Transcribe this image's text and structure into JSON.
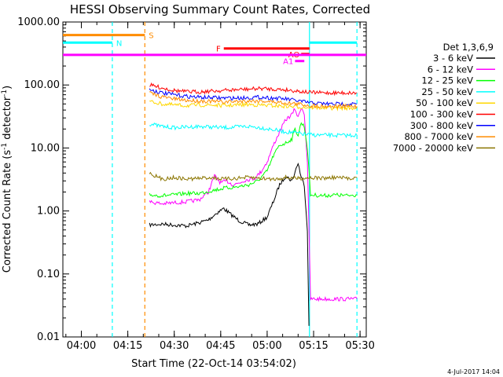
{
  "chart_data": {
    "type": "line",
    "title": "HESSI Observing Summary Count Rates, Corrected",
    "xlabel": "Start Time (22-Oct-14 03:54:02)",
    "ylabel_prefix": "Corrected Count Rate (s",
    "ylabel_sup1": "-1",
    "ylabel_mid": " detector",
    "ylabel_sup2": "-1",
    "ylabel_suffix": ")",
    "y_scale": "log",
    "ylim": [
      0.01,
      1000
    ],
    "xlim": [
      "03:54:02",
      "05:32:00"
    ],
    "x_ticks": [
      "04:00",
      "04:15",
      "04:30",
      "04:45",
      "05:00",
      "05:15",
      "05:30"
    ],
    "y_ticks": [
      "1000.00",
      "100.00",
      "10.00",
      "1.00",
      "0.10",
      "0.01"
    ],
    "y_tick_values": [
      1000,
      100,
      10,
      1,
      0.1,
      0.01
    ],
    "legend_title": "Det 1,3,6,9",
    "legend_position": "right",
    "series": [
      {
        "name": "3 - 6 keV",
        "color": "#000000",
        "points": [
          [
            "04:22",
            0.6
          ],
          [
            "04:26",
            0.62
          ],
          [
            "04:30",
            0.6
          ],
          [
            "04:34",
            0.58
          ],
          [
            "04:38",
            0.65
          ],
          [
            "04:41",
            0.72
          ],
          [
            "04:44",
            0.95
          ],
          [
            "04:46",
            1.1
          ],
          [
            "04:48",
            0.9
          ],
          [
            "04:51",
            0.7
          ],
          [
            "04:54",
            0.6
          ],
          [
            "04:57",
            0.62
          ],
          [
            "05:00",
            0.8
          ],
          [
            "05:02",
            1.4
          ],
          [
            "05:04",
            2.6
          ],
          [
            "05:06",
            3.6
          ],
          [
            "05:08",
            3.0
          ],
          [
            "05:09",
            4.2
          ],
          [
            "05:10",
            5.8
          ],
          [
            "05:11",
            3.4
          ],
          [
            "05:12",
            2.6
          ],
          [
            "05:13",
            0.5
          ],
          [
            "05:13:30",
            0.015
          ]
        ]
      },
      {
        "name": "6 - 12 keV",
        "color": "#ff00ff",
        "points": [
          [
            "04:22",
            1.4
          ],
          [
            "04:26",
            1.3
          ],
          [
            "04:30",
            1.35
          ],
          [
            "04:34",
            1.4
          ],
          [
            "04:38",
            1.5
          ],
          [
            "04:41",
            2.0
          ],
          [
            "04:43",
            3.6
          ],
          [
            "04:45",
            2.8
          ],
          [
            "04:47",
            3.0
          ],
          [
            "04:49",
            2.6
          ],
          [
            "04:51",
            2.8
          ],
          [
            "04:53",
            3.1
          ],
          [
            "04:56",
            3.3
          ],
          [
            "04:58",
            4.2
          ],
          [
            "05:00",
            6.0
          ],
          [
            "05:02",
            11.0
          ],
          [
            "05:04",
            18.0
          ],
          [
            "05:06",
            28.0
          ],
          [
            "05:08",
            34.0
          ],
          [
            "05:09",
            42.0
          ],
          [
            "05:10",
            30.0
          ],
          [
            "05:11",
            45.0
          ],
          [
            "05:12",
            35.0
          ],
          [
            "05:13",
            6.0
          ],
          [
            "05:14",
            0.04
          ],
          [
            "05:16",
            0.04
          ],
          [
            "05:20",
            0.04
          ],
          [
            "05:24",
            0.04
          ],
          [
            "05:28",
            0.04
          ],
          [
            "05:29",
            0.04
          ]
        ]
      },
      {
        "name": "12 - 25 keV",
        "color": "#00ff00",
        "points": [
          [
            "04:22",
            1.8
          ],
          [
            "04:26",
            1.75
          ],
          [
            "04:30",
            1.8
          ],
          [
            "04:34",
            1.9
          ],
          [
            "04:38",
            1.9
          ],
          [
            "04:42",
            2.1
          ],
          [
            "04:46",
            2.3
          ],
          [
            "04:50",
            2.4
          ],
          [
            "04:54",
            2.6
          ],
          [
            "04:57",
            3.0
          ],
          [
            "05:00",
            4.3
          ],
          [
            "05:02",
            7.5
          ],
          [
            "05:04",
            11.0
          ],
          [
            "05:06",
            12.0
          ],
          [
            "05:08",
            14.0
          ],
          [
            "05:09",
            20.0
          ],
          [
            "05:10",
            16.0
          ],
          [
            "05:11",
            25.0
          ],
          [
            "05:12",
            22.0
          ],
          [
            "05:13",
            10.0
          ],
          [
            "05:14",
            1.8
          ],
          [
            "05:18",
            1.75
          ],
          [
            "05:22",
            1.8
          ],
          [
            "05:26",
            1.75
          ],
          [
            "05:29",
            1.8
          ]
        ]
      },
      {
        "name": "25 - 50 keV",
        "color": "#00ffff",
        "points": [
          [
            "04:22",
            24.0
          ],
          [
            "04:26",
            22.0
          ],
          [
            "04:30",
            21.0
          ],
          [
            "04:34",
            21.5
          ],
          [
            "04:38",
            22.0
          ],
          [
            "04:42",
            21.5
          ],
          [
            "04:46",
            21.0
          ],
          [
            "04:50",
            21.5
          ],
          [
            "04:54",
            22.0
          ],
          [
            "04:58",
            21.0
          ],
          [
            "05:02",
            19.5
          ],
          [
            "05:06",
            18.0
          ],
          [
            "05:09",
            17.5
          ],
          [
            "05:12",
            16.5
          ],
          [
            "05:16",
            16.0
          ],
          [
            "05:20",
            16.0
          ],
          [
            "05:24",
            15.8
          ],
          [
            "05:29",
            16.0
          ]
        ]
      },
      {
        "name": "50 - 100 keV",
        "color": "#ffd700",
        "points": [
          [
            "04:22",
            55.0
          ],
          [
            "04:26",
            50.0
          ],
          [
            "04:30",
            48.0
          ],
          [
            "04:34",
            47.0
          ],
          [
            "04:38",
            48.0
          ],
          [
            "04:42",
            48.0
          ],
          [
            "04:46",
            47.0
          ],
          [
            "04:50",
            48.0
          ],
          [
            "04:54",
            49.0
          ],
          [
            "04:58",
            48.0
          ],
          [
            "05:02",
            47.0
          ],
          [
            "05:06",
            46.0
          ],
          [
            "05:10",
            45.0
          ],
          [
            "05:14",
            44.0
          ],
          [
            "05:20",
            43.0
          ],
          [
            "05:29",
            43.0
          ]
        ]
      },
      {
        "name": "100 - 300 keV",
        "color": "#ff0000",
        "points": [
          [
            "04:22",
            100.0
          ],
          [
            "04:26",
            90.0
          ],
          [
            "04:30",
            82.0
          ],
          [
            "04:34",
            78.0
          ],
          [
            "04:38",
            78.0
          ],
          [
            "04:42",
            80.0
          ],
          [
            "04:46",
            82.0
          ],
          [
            "04:50",
            84.0
          ],
          [
            "04:54",
            86.0
          ],
          [
            "04:58",
            88.0
          ],
          [
            "05:02",
            86.0
          ],
          [
            "05:06",
            84.0
          ],
          [
            "05:10",
            80.0
          ],
          [
            "05:14",
            76.0
          ],
          [
            "05:20",
            75.0
          ],
          [
            "05:29",
            75.0
          ]
        ]
      },
      {
        "name": "300 - 800 keV",
        "color": "#0000ff",
        "points": [
          [
            "04:22",
            85.0
          ],
          [
            "04:26",
            75.0
          ],
          [
            "04:30",
            70.0
          ],
          [
            "04:34",
            66.0
          ],
          [
            "04:38",
            64.0
          ],
          [
            "04:42",
            63.0
          ],
          [
            "04:46",
            62.0
          ],
          [
            "04:50",
            62.0
          ],
          [
            "04:54",
            63.0
          ],
          [
            "04:58",
            64.0
          ],
          [
            "05:02",
            62.0
          ],
          [
            "05:06",
            60.0
          ],
          [
            "05:10",
            56.0
          ],
          [
            "05:14",
            52.0
          ],
          [
            "05:20",
            50.0
          ],
          [
            "05:29",
            50.0
          ]
        ]
      },
      {
        "name": "800 - 7000 keV",
        "color": "#ff8c00",
        "points": [
          [
            "04:22",
            75.0
          ],
          [
            "04:26",
            65.0
          ],
          [
            "04:30",
            60.0
          ],
          [
            "04:34",
            57.0
          ],
          [
            "04:38",
            56.0
          ],
          [
            "04:42",
            55.0
          ],
          [
            "04:46",
            54.0
          ],
          [
            "04:50",
            55.0
          ],
          [
            "04:54",
            56.0
          ],
          [
            "04:58",
            56.0
          ],
          [
            "05:02",
            54.0
          ],
          [
            "05:06",
            52.0
          ],
          [
            "05:10",
            50.0
          ],
          [
            "05:14",
            47.0
          ],
          [
            "05:20",
            46.0
          ],
          [
            "05:29",
            46.0
          ]
        ]
      },
      {
        "name": "7000 - 20000 keV",
        "color": "#8b7500",
        "points": [
          [
            "04:22",
            4.0
          ],
          [
            "04:26",
            3.2
          ],
          [
            "04:30",
            3.4
          ],
          [
            "04:34",
            3.2
          ],
          [
            "04:38",
            3.3
          ],
          [
            "04:42",
            3.4
          ],
          [
            "04:46",
            3.2
          ],
          [
            "04:50",
            3.3
          ],
          [
            "04:54",
            3.4
          ],
          [
            "04:58",
            3.3
          ],
          [
            "05:02",
            3.2
          ],
          [
            "05:06",
            3.4
          ],
          [
            "05:10",
            3.3
          ],
          [
            "05:14",
            3.4
          ],
          [
            "05:18",
            3.3
          ],
          [
            "05:22",
            3.4
          ],
          [
            "05:26",
            3.3
          ],
          [
            "05:29",
            3.4
          ]
        ]
      }
    ],
    "vertical_lines": [
      {
        "time": "04:10",
        "color": "#00ffff",
        "style": "dashed"
      },
      {
        "time": "04:20:30",
        "color": "#ff8c00",
        "style": "dashed"
      },
      {
        "time": "05:13:40",
        "color": "#00ffff",
        "style": "solid"
      },
      {
        "time": "05:29",
        "color": "#00ffff",
        "style": "dashed"
      }
    ],
    "flag_bars": [
      {
        "label": "S",
        "color": "#ff8c00",
        "y": 620,
        "start": "03:54:02",
        "end": "04:20:30"
      },
      {
        "label": "N",
        "color": "#00ffff",
        "y": 470,
        "start": "03:54:02",
        "end": "04:10",
        "second_start": "05:13:40",
        "second_end": "05:29"
      },
      {
        "label": "F",
        "color": "#ff0000",
        "y": 380,
        "start": "04:46",
        "end": "05:13:40"
      },
      {
        "label": "AO",
        "color": "#ff0000",
        "y": 310,
        "start": "05:11",
        "end": "05:13:40"
      },
      {
        "label": "",
        "color": "#ff00ff",
        "y": 300,
        "start": "03:54:02",
        "end": "05:32"
      },
      {
        "label": "A1",
        "color": "#ff00ff",
        "y": 240,
        "start": "05:09",
        "end": "05:12"
      }
    ]
  },
  "timestamp": "4-Jul-2017 14:04"
}
